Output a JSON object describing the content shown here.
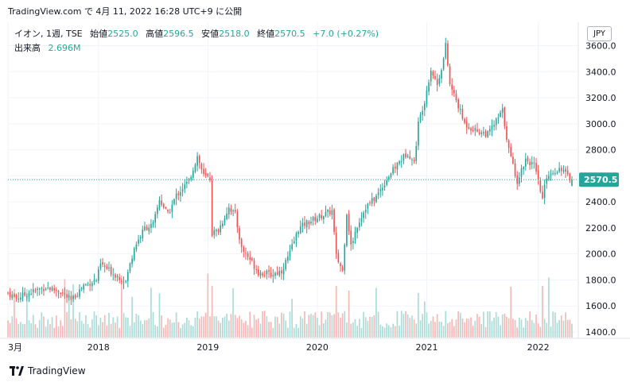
{
  "header": {
    "title": "TradingView.com で 4月 11, 2022 16:28 UTC+9 に公開"
  },
  "legend": {
    "symbol": "イオン, 1週, TSE",
    "open_label": "始値",
    "open": "2525.0",
    "high_label": "高値",
    "high": "2596.5",
    "low_label": "安値",
    "low": "2518.0",
    "close_label": "終値",
    "close": "2570.5",
    "change": "+7.0 (+0.27%)",
    "volume_label": "出来高",
    "volume": "2.696M"
  },
  "currency_button": "JPY",
  "last_price_label": "2570.5",
  "footer": {
    "brand": "TradingView"
  },
  "colors": {
    "up": "#26a69a",
    "down": "#ef5350",
    "up_volume": "#a9dcd6",
    "down_volume": "#f7b7b5",
    "grid": "#f0f3fa",
    "text": "#131722"
  },
  "chart_data": {
    "type": "candlestick",
    "interval": "1W",
    "y_ticks": [
      "1400.0",
      "1600.0",
      "1800.0",
      "2000.0",
      "2200.0",
      "2400.0",
      "2600.0",
      "2800.0",
      "3000.0",
      "3200.0",
      "3400.0",
      "3600.0"
    ],
    "ylim": [
      1400,
      3780
    ],
    "x_ticks": [
      {
        "label": "3月",
        "t": 0
      },
      {
        "label": "2018",
        "t": 43
      },
      {
        "label": "2019",
        "t": 95
      },
      {
        "label": "2020",
        "t": 147
      },
      {
        "label": "2021",
        "t": 199
      },
      {
        "label": "2022",
        "t": 252
      }
    ],
    "xlim": [
      0,
      268
    ],
    "close_path": [
      [
        0,
        1700
      ],
      [
        4,
        1660
      ],
      [
        10,
        1700
      ],
      [
        18,
        1745
      ],
      [
        25,
        1710
      ],
      [
        30,
        1640
      ],
      [
        36,
        1760
      ],
      [
        42,
        1800
      ],
      [
        44,
        1920
      ],
      [
        50,
        1850
      ],
      [
        56,
        1790
      ],
      [
        60,
        2050
      ],
      [
        65,
        2200
      ],
      [
        69,
        2220
      ],
      [
        72,
        2420
      ],
      [
        76,
        2300
      ],
      [
        80,
        2450
      ],
      [
        86,
        2560
      ],
      [
        90,
        2750
      ],
      [
        93,
        2600
      ],
      [
        96,
        2580
      ],
      [
        97,
        2160
      ],
      [
        100,
        2180
      ],
      [
        105,
        2360
      ],
      [
        108,
        2300
      ],
      [
        111,
        2040
      ],
      [
        115,
        1960
      ],
      [
        119,
        1860
      ],
      [
        125,
        1840
      ],
      [
        130,
        1870
      ],
      [
        134,
        2010
      ],
      [
        138,
        2190
      ],
      [
        142,
        2240
      ],
      [
        146,
        2270
      ],
      [
        150,
        2300
      ],
      [
        154,
        2330
      ],
      [
        156,
        1980
      ],
      [
        159,
        1870
      ],
      [
        161,
        2320
      ],
      [
        163,
        2060
      ],
      [
        166,
        2220
      ],
      [
        170,
        2360
      ],
      [
        175,
        2440
      ],
      [
        181,
        2600
      ],
      [
        186,
        2710
      ],
      [
        190,
        2780
      ],
      [
        193,
        2700
      ],
      [
        195,
        3000
      ],
      [
        198,
        3180
      ],
      [
        201,
        3420
      ],
      [
        204,
        3300
      ],
      [
        207,
        3500
      ],
      [
        208,
        3600
      ],
      [
        210,
        3300
      ],
      [
        213,
        3180
      ],
      [
        217,
        3000
      ],
      [
        222,
        2950
      ],
      [
        228,
        2920
      ],
      [
        232,
        3020
      ],
      [
        235,
        3100
      ],
      [
        238,
        2800
      ],
      [
        242,
        2560
      ],
      [
        246,
        2730
      ],
      [
        250,
        2680
      ],
      [
        254,
        2420
      ],
      [
        256,
        2600
      ],
      [
        260,
        2640
      ],
      [
        263,
        2660
      ],
      [
        266,
        2590
      ],
      [
        268,
        2570
      ]
    ],
    "last": {
      "open": 2525.0,
      "high": 2596.5,
      "low": 2518.0,
      "close": 2570.5,
      "volume": "2.696M"
    }
  }
}
